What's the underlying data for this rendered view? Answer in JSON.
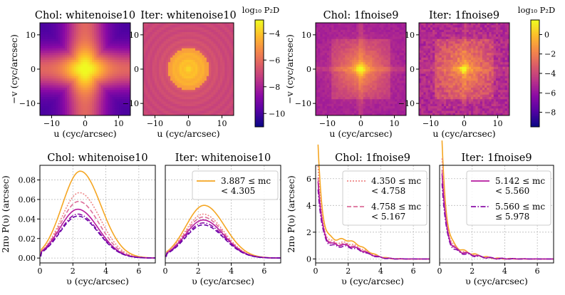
{
  "colorbars": [
    {
      "label": "log₁₀ P₂D",
      "ticks": [
        -4,
        -6,
        -8,
        -10
      ],
      "range": [
        -11,
        -3
      ]
    },
    {
      "label": "log₁₀ P₂D",
      "ticks": [
        0,
        -2,
        -4,
        -6,
        -8
      ],
      "range": [
        -9.5,
        1.5
      ]
    }
  ],
  "images": [
    {
      "title": "Chol: whitenoise10",
      "kind": "chol_white",
      "xlabel": "u (cyc/arcsec)",
      "ylabel": "−v (cyc/arcsec)",
      "show_ylabel": true
    },
    {
      "title": "Iter: whitenoise10",
      "kind": "iter_white",
      "xlabel": "u (cyc/arcsec)",
      "ylabel": "",
      "show_ylabel": false
    },
    {
      "title": "Chol: 1fnoise9",
      "kind": "chol_1f",
      "xlabel": "u (cyc/arcsec)",
      "ylabel": "−v (cyc/arcsec)",
      "show_ylabel": true
    },
    {
      "title": "Iter: 1fnoise9",
      "kind": "iter_1f",
      "xlabel": "u (cyc/arcsec)",
      "ylabel": "",
      "show_ylabel": false
    }
  ],
  "image_axis": {
    "ticks": [
      -10,
      0,
      10
    ],
    "range": [
      -13.5,
      13.5
    ]
  },
  "chart_data": [
    {
      "type": "line",
      "title": "Chol: whitenoise10",
      "xlabel": "υ (cyc/arcsec)",
      "ylabel": "2πυ P(υ) (arcsec)",
      "xlim": [
        0,
        7
      ],
      "ylim": [
        -0.005,
        0.095
      ],
      "xticks": [
        0,
        2,
        4,
        6
      ],
      "yticks": [
        0.0,
        0.02,
        0.04,
        0.06,
        0.08
      ],
      "series": [
        {
          "name": "3.887 ≤ mc < 4.305",
          "peak": 0.089,
          "peak_x": 2.45,
          "style": "solid",
          "color": "#f5a623"
        },
        {
          "name": "4.350 ≤ mc < 4.758",
          "peak": 0.067,
          "peak_x": 2.4,
          "style": "dotted",
          "color": "#ee8686"
        },
        {
          "name": "4.758 ≤ mc < 5.167",
          "peak": 0.058,
          "peak_x": 2.35,
          "style": "dashed",
          "color": "#dd6e9a"
        },
        {
          "name": "5.142 ≤ mc < 5.560",
          "peak": 0.05,
          "peak_x": 2.3,
          "style": "solid",
          "color": "#b5199e"
        },
        {
          "name": "5.560 ≤ mc ≤ 5.978",
          "peak": 0.045,
          "peak_x": 2.3,
          "style": "dashdot",
          "color": "#8a0fa8"
        },
        {
          "name": "",
          "peak": 0.043,
          "peak_x": 2.3,
          "style": "dashed",
          "color": "#6a00a8"
        }
      ]
    },
    {
      "type": "line",
      "title": "Iter: whitenoise10",
      "xlabel": "υ (cyc/arcsec)",
      "ylabel": "",
      "xlim": [
        0,
        7
      ],
      "ylim": [
        -0.005,
        0.095
      ],
      "xticks": [
        0,
        2,
        4,
        6
      ],
      "yticks": [],
      "legend": [
        {
          "label1": "3.887 ≤ mc",
          "label2": "< 4.305",
          "style": "solid",
          "color": "#f5a623"
        }
      ],
      "series": [
        {
          "name": "3.887 ≤ mc < 4.305",
          "peak": 0.054,
          "peak_x": 2.35,
          "style": "solid",
          "color": "#f5a623"
        },
        {
          "name": "4.350 ≤ mc < 4.758",
          "peak": 0.045,
          "peak_x": 2.3,
          "style": "dotted",
          "color": "#ee8686"
        },
        {
          "name": "4.758 ≤ mc < 5.167",
          "peak": 0.042,
          "peak_x": 2.3,
          "style": "dashed",
          "color": "#dd6e9a"
        },
        {
          "name": "5.142 ≤ mc < 5.560",
          "peak": 0.039,
          "peak_x": 2.3,
          "style": "solid",
          "color": "#b5199e"
        },
        {
          "name": "5.560 ≤ mc ≤ 5.978",
          "peak": 0.036,
          "peak_x": 2.3,
          "style": "dashdot",
          "color": "#8a0fa8"
        },
        {
          "name": "",
          "peak": 0.034,
          "peak_x": 2.3,
          "style": "dashed",
          "color": "#6a00a8"
        }
      ]
    },
    {
      "type": "line",
      "title": "Chol: 1fnoise9",
      "xlabel": "υ (cyc/arcsec)",
      "ylabel": "2πυ P(υ) (arcsec)",
      "xlim": [
        0,
        7
      ],
      "ylim": [
        -0.3,
        7
      ],
      "xticks": [
        0,
        2,
        4,
        6
      ],
      "yticks": [
        0,
        2,
        4,
        6
      ],
      "legend": [
        {
          "label1": "4.350 ≤ mc",
          "label2": "< 4.758",
          "style": "dotted",
          "color": "#ee8686"
        },
        {
          "label1": "4.758 ≤ mc",
          "label2": "< 5.167",
          "style": "dashed",
          "color": "#dd6e9a"
        }
      ],
      "series": [
        {
          "name": "3.887 ≤ mc < 4.305",
          "start": 6.1,
          "base": 1.2,
          "bump": 1.6,
          "style": "solid",
          "color": "#f5a623"
        },
        {
          "name": "4.350 ≤ mc < 4.758",
          "start": 5.0,
          "base": 1.0,
          "bump": 1.35,
          "style": "dotted",
          "color": "#ee8686"
        },
        {
          "name": "4.758 ≤ mc < 5.167",
          "start": 4.4,
          "base": 0.95,
          "bump": 1.2,
          "style": "dashed",
          "color": "#dd6e9a"
        },
        {
          "name": "5.142 ≤ mc < 5.560",
          "start": 4.2,
          "base": 0.9,
          "bump": 1.1,
          "style": "solid",
          "color": "#b5199e"
        },
        {
          "name": "5.560 ≤ mc ≤ 5.978",
          "start": 3.8,
          "base": 0.8,
          "bump": 1.0,
          "style": "dashdot",
          "color": "#8a0fa8"
        }
      ]
    },
    {
      "type": "line",
      "title": "Iter: 1fnoise9",
      "xlabel": "υ (cyc/arcsec)",
      "ylabel": "",
      "xlim": [
        0,
        7
      ],
      "ylim": [
        -0.3,
        7
      ],
      "xticks": [
        0,
        2,
        4,
        6
      ],
      "yticks": [],
      "legend": [
        {
          "label1": "5.142 ≤ mc",
          "label2": "< 5.560",
          "style": "solid",
          "color": "#b5199e"
        },
        {
          "label1": "5.560 ≤ mc",
          "label2": "≤ 5.978",
          "style": "dashdot",
          "color": "#8a0fa8"
        }
      ],
      "series": [
        {
          "name": "3.887 ≤ mc < 4.305",
          "start": 6.6,
          "base": 0.9,
          "bump": 0.0,
          "style": "solid",
          "color": "#f5a623"
        },
        {
          "name": "4.350 ≤ mc < 4.758",
          "start": 5.6,
          "base": 0.8,
          "bump": 0.0,
          "style": "dotted",
          "color": "#ee8686"
        },
        {
          "name": "4.758 ≤ mc < 5.167",
          "start": 5.0,
          "base": 0.75,
          "bump": 0.0,
          "style": "dashed",
          "color": "#dd6e9a"
        },
        {
          "name": "5.142 ≤ mc < 5.560",
          "start": 4.8,
          "base": 0.7,
          "bump": 0.0,
          "style": "solid",
          "color": "#b5199e"
        },
        {
          "name": "5.560 ≤ mc ≤ 5.978",
          "start": 4.3,
          "base": 0.6,
          "bump": 0.0,
          "style": "dashdot",
          "color": "#8a0fa8"
        }
      ]
    }
  ]
}
